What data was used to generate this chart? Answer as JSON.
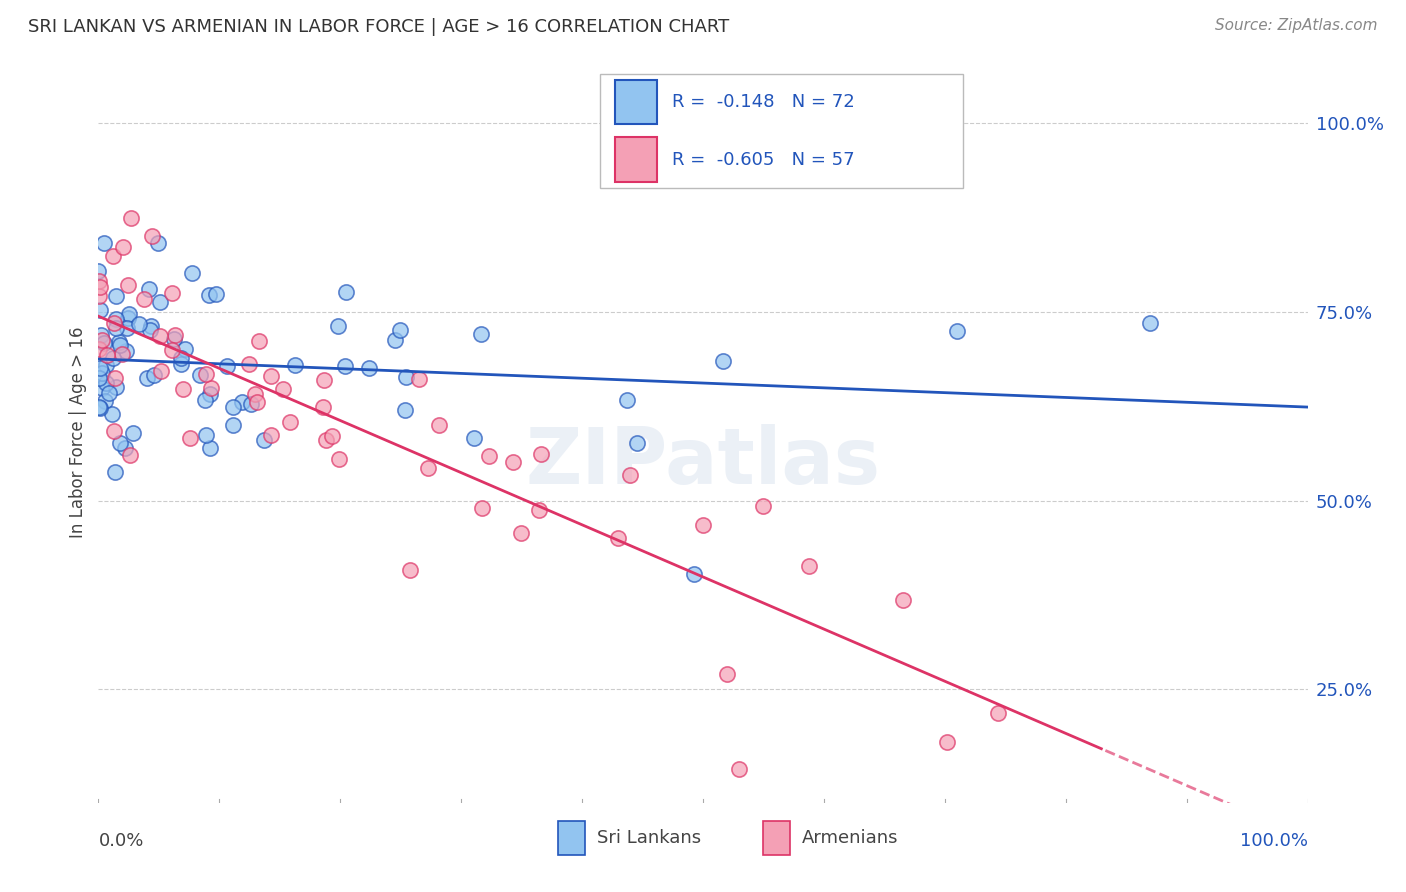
{
  "title": "SRI LANKAN VS ARMENIAN IN LABOR FORCE | AGE > 16 CORRELATION CHART",
  "source": "Source: ZipAtlas.com",
  "ylabel": "In Labor Force | Age > 16",
  "legend_label1": "Sri Lankans",
  "legend_label2": "Armenians",
  "R1": -0.148,
  "N1": 72,
  "R2": -0.605,
  "N2": 57,
  "color_sri": "#92C4F0",
  "color_arm": "#F4A0B5",
  "color_line_sri": "#2255BB",
  "color_line_arm": "#DD3366",
  "background": "#FFFFFF",
  "yaxis_values": [
    0.25,
    0.5,
    0.75,
    1.0
  ],
  "xlim": [
    0.0,
    1.0
  ],
  "ylim": [
    0.1,
    1.08
  ],
  "scatter_size": 120,
  "scatter_alpha": 0.7,
  "grid_color": "#CCCCCC",
  "grid_lw": 0.8,
  "line_lw": 2.0,
  "title_fontsize": 13,
  "source_fontsize": 11,
  "tick_fontsize": 13,
  "legend_fontsize": 13,
  "ylabel_fontsize": 12
}
